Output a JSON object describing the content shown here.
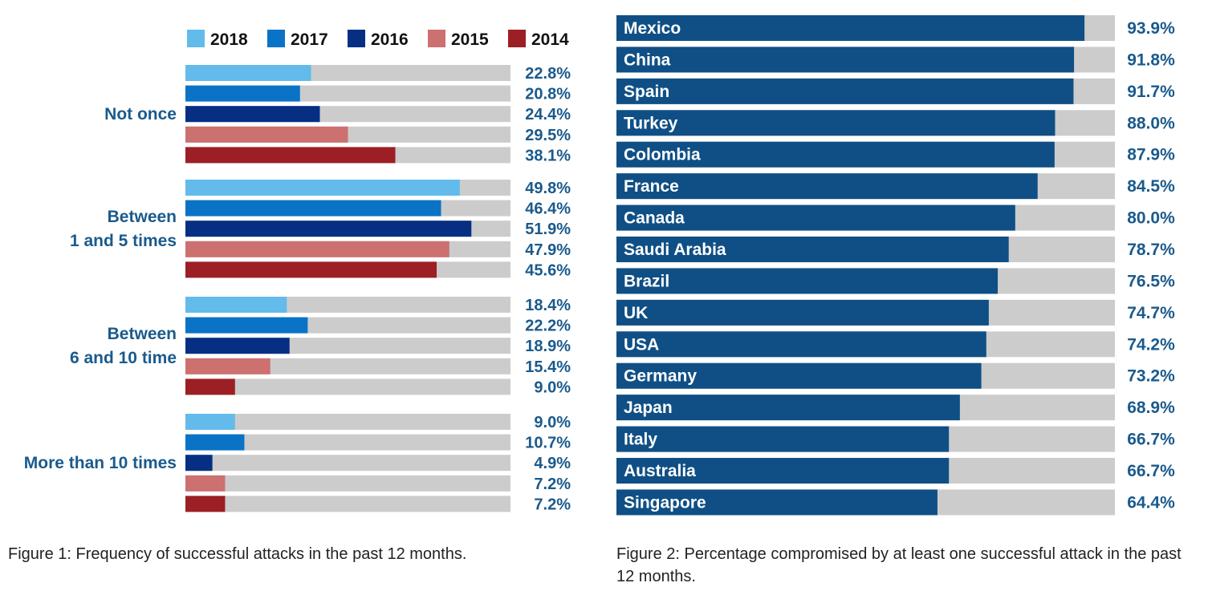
{
  "chart_data": [
    {
      "type": "bar",
      "orientation": "horizontal",
      "caption": "Figure 1: Frequency of successful attacks in the past 12 months.",
      "categories": [
        "Not once",
        "Between 1 and 5 times",
        "Between 6 and 10 time",
        "More than 10 times"
      ],
      "category_lines": [
        [
          "Not once"
        ],
        [
          "Between",
          "1 and 5 times"
        ],
        [
          "Between",
          "6 and 10 time"
        ],
        [
          "More than 10 times"
        ]
      ],
      "series": [
        {
          "name": "2018",
          "color": "#62bbeb",
          "values": [
            22.8,
            49.8,
            18.4,
            9.0
          ]
        },
        {
          "name": "2017",
          "color": "#0a73c6",
          "values": [
            20.8,
            46.4,
            22.2,
            10.7
          ]
        },
        {
          "name": "2016",
          "color": "#062f83",
          "values": [
            24.4,
            51.9,
            18.9,
            4.9
          ]
        },
        {
          "name": "2015",
          "color": "#cd7070",
          "values": [
            29.5,
            47.9,
            15.4,
            7.2
          ]
        },
        {
          "name": "2014",
          "color": "#9b1f24",
          "values": [
            38.1,
            45.6,
            9.0,
            7.2
          ]
        }
      ],
      "xlim": [
        0,
        59
      ],
      "track_color": "#cccccc",
      "legend_position": "top"
    },
    {
      "type": "bar",
      "orientation": "horizontal",
      "caption": "Figure 2: Percentage compromised by at least one successful attack in the past 12 months.",
      "bar_color": "#0f4f85",
      "track_color": "#cccccc",
      "xlim": [
        0,
        100
      ],
      "categories": [
        "Mexico",
        "China",
        "Spain",
        "Turkey",
        "Colombia",
        "France",
        "Canada",
        "Saudi Arabia",
        "Brazil",
        "UK",
        "USA",
        "Germany",
        "Japan",
        "Italy",
        "Australia",
        "Singapore"
      ],
      "values": [
        93.9,
        91.8,
        91.7,
        88.0,
        87.9,
        84.5,
        80.0,
        78.7,
        76.5,
        74.7,
        74.2,
        73.2,
        68.9,
        66.7,
        66.7,
        64.4
      ],
      "value_labels": [
        "93.9%",
        "91.8%",
        "91.7%",
        "88.0%",
        "87.9%",
        "84.5%",
        "80.0%",
        "78.7%",
        "76.5%",
        "74.7%",
        "74.2%",
        "73.2%",
        "68.9%",
        "66.7%",
        "66.7%",
        "64.4%"
      ]
    }
  ]
}
